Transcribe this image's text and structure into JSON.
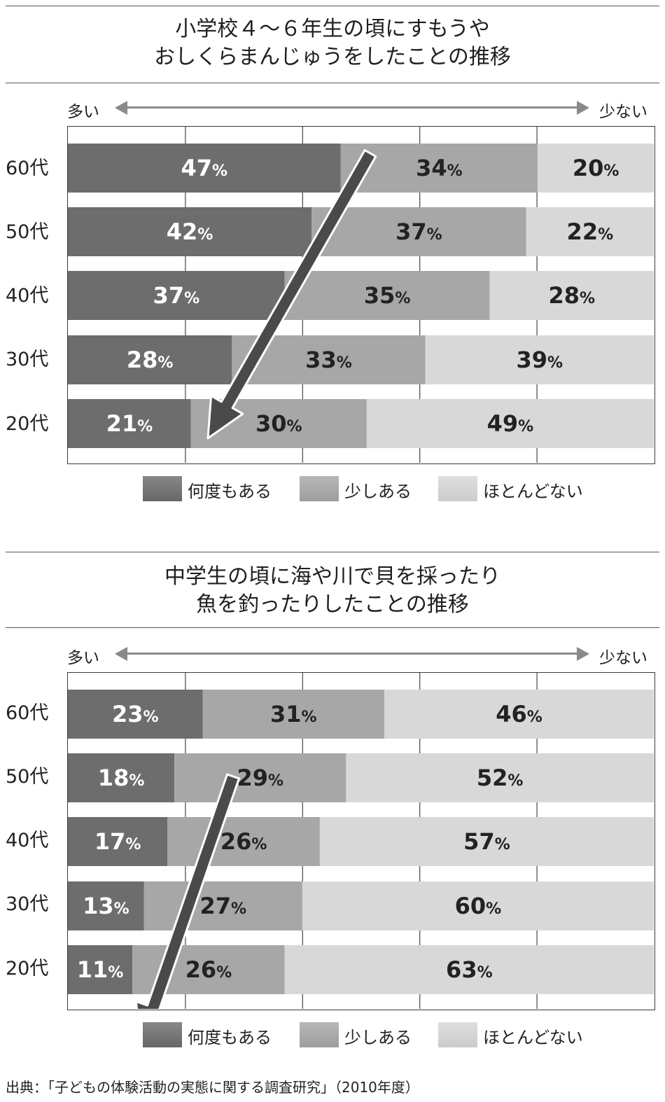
{
  "direction_labels": {
    "left": "多い",
    "right": "少ない"
  },
  "legend": [
    {
      "label": "何度もある",
      "color": "#6d6d6d"
    },
    {
      "label": "少しある",
      "color": "#a7a7a7"
    },
    {
      "label": "ほとんどない",
      "color": "#d8d8d8"
    }
  ],
  "source": "出典：「子どもの体験活動の実態に関する調査研究」（2010年度）",
  "chart_data": [
    {
      "type": "bar",
      "orientation": "horizontal",
      "stacked": true,
      "title_lines": [
        "小学校４～６年生の頃にすもうや",
        "おしくらまんじゅうをしたことの推移"
      ],
      "categories": [
        "60代",
        "50代",
        "40代",
        "30代",
        "20代"
      ],
      "series": [
        {
          "name": "何度もある",
          "values": [
            47,
            42,
            37,
            28,
            21
          ]
        },
        {
          "name": "少しある",
          "values": [
            34,
            37,
            35,
            33,
            30
          ]
        },
        {
          "name": "ほとんどない",
          "values": [
            20,
            22,
            28,
            39,
            49
          ]
        }
      ],
      "value_suffix": "%",
      "xlim": [
        0,
        100
      ],
      "grid": true,
      "legend": "bottom",
      "annotation": "arrow-trend-down-left"
    },
    {
      "type": "bar",
      "orientation": "horizontal",
      "stacked": true,
      "title_lines": [
        "中学生の頃に海や川で貝を採ったり",
        "魚を釣ったりしたことの推移"
      ],
      "categories": [
        "60代",
        "50代",
        "40代",
        "30代",
        "20代"
      ],
      "series": [
        {
          "name": "何度もある",
          "values": [
            23,
            18,
            17,
            13,
            11
          ]
        },
        {
          "name": "少しある",
          "values": [
            31,
            29,
            26,
            27,
            26
          ]
        },
        {
          "name": "ほとんどない",
          "values": [
            46,
            52,
            57,
            60,
            63
          ]
        }
      ],
      "value_suffix": "%",
      "xlim": [
        0,
        100
      ],
      "grid": true,
      "legend": "bottom",
      "annotation": "arrow-trend-down-left"
    }
  ]
}
